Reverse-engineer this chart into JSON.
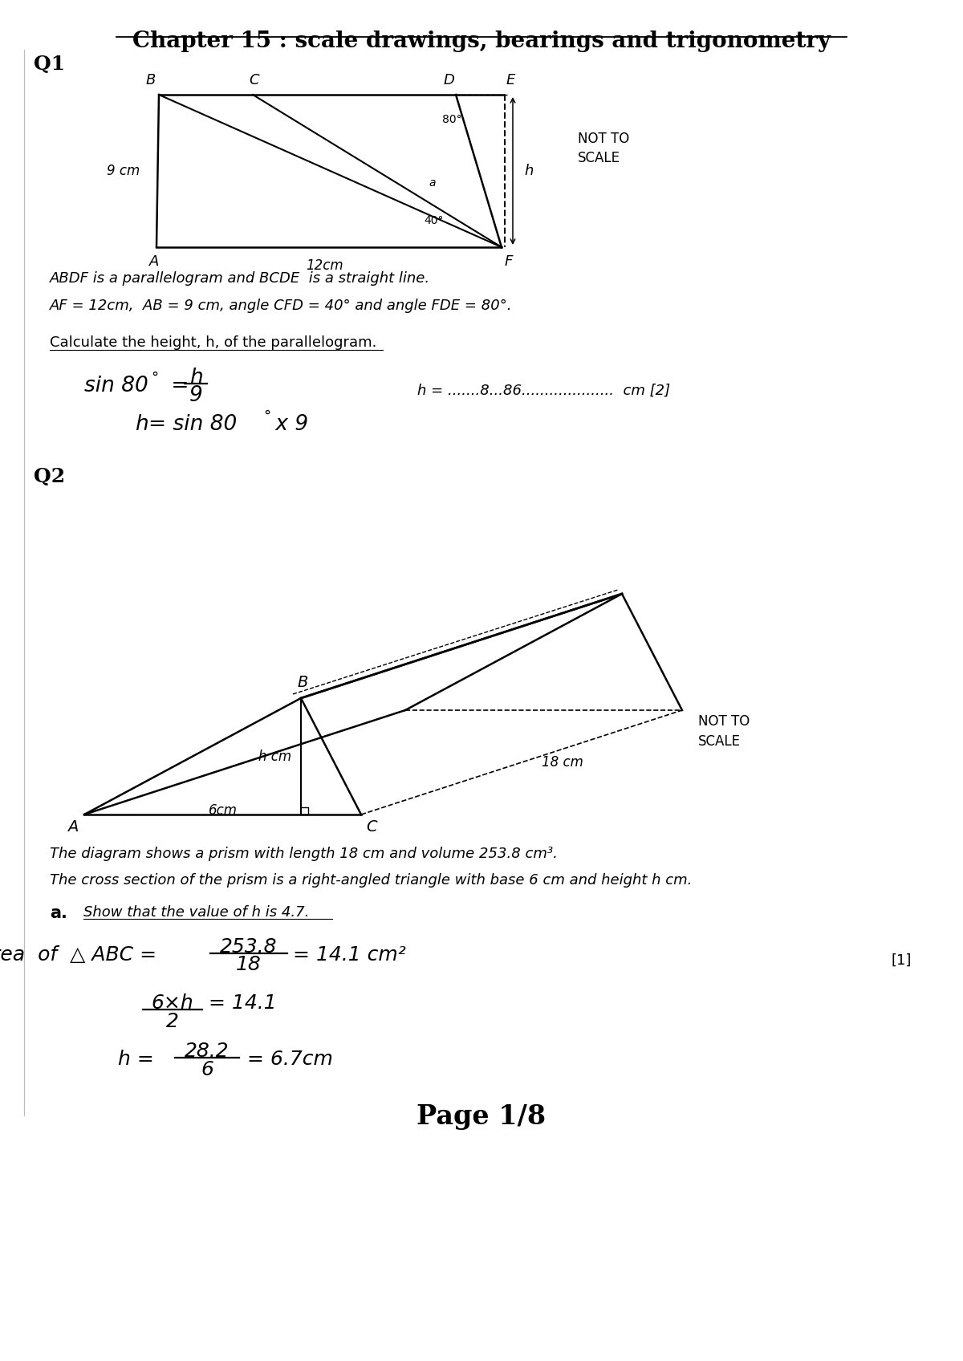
{
  "title": "Chapter 15 : scale drawings, bearings and trigonometry",
  "bg_color": "#ffffff",
  "q1_label": "Q1",
  "q2_label": "Q2",
  "q1_text1": "ABDF is a parallelogram and BCDE  is a straight line.",
  "q1_text2": "AF = 12cm,  AB = 9 cm, angle CFD = 40° and angle FDE = 80°.",
  "q1_instruction": "Calculate the height, h, of the parallelogram.",
  "q1_answer": "h = .......8...86....................  cm [2]",
  "q2_text1": "The diagram shows a prism with length 18 cm and volume 253.8 cm³.",
  "q2_text2": "The cross section of the prism is a right-angled triangle with base 6 cm and height h cm.",
  "q2a_label": "a.",
  "q2a_instruction": "Show that the value of h is 4.7.",
  "page_label": "Page 1/8"
}
